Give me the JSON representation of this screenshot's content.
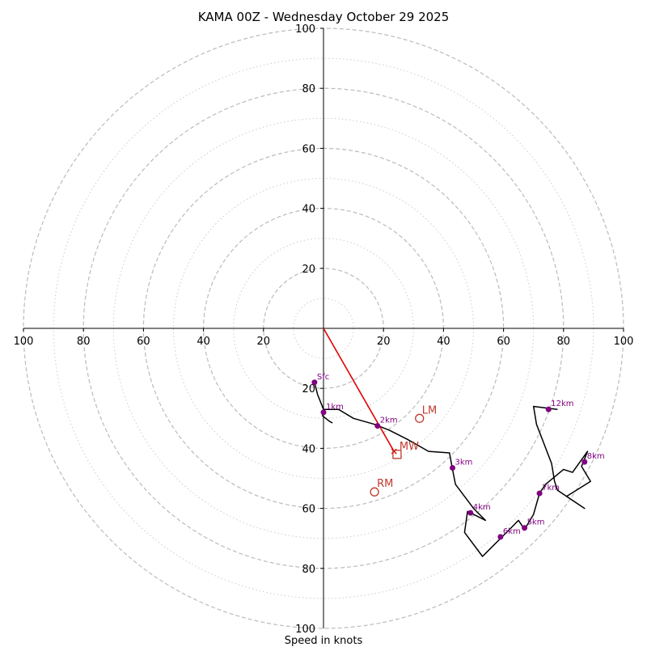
{
  "chart_data": {
    "type": "hodograph",
    "title": "KAMA 00Z - Wednesday October 29 2025",
    "xlabel": "Speed in knots",
    "range": [
      -100,
      100
    ],
    "ring_major": [
      20,
      40,
      60,
      80,
      100
    ],
    "ring_minor": [
      10,
      30,
      50,
      70,
      90
    ],
    "tick_labels": [
      "100",
      "80",
      "60",
      "40",
      "20",
      "20",
      "40",
      "60",
      "80",
      "100"
    ],
    "x_tick_values": [
      -100,
      -80,
      -60,
      -40,
      -20,
      20,
      40,
      60,
      80,
      100
    ],
    "y_tick_labels": [
      "100",
      "80",
      "60",
      "40",
      "20",
      "20",
      "40",
      "60",
      "80"
    ],
    "y_tick_values": [
      100,
      80,
      60,
      40,
      20,
      -20,
      -40,
      -60,
      -80
    ],
    "y_bottom_label": "100",
    "profile": [
      [
        -3,
        -18
      ],
      [
        -2,
        -22
      ],
      [
        0,
        -27
      ],
      [
        5,
        -27
      ],
      [
        10,
        -30
      ],
      [
        17,
        -32
      ],
      [
        22,
        -34
      ],
      [
        28,
        -37
      ],
      [
        35,
        -41
      ],
      [
        42,
        -41.5
      ],
      [
        43,
        -47
      ],
      [
        44,
        -52
      ],
      [
        47,
        -56
      ],
      [
        50,
        -60
      ],
      [
        54,
        -64
      ],
      [
        48,
        -61
      ],
      [
        47,
        -68
      ],
      [
        53,
        -76
      ],
      [
        54,
        -75
      ],
      [
        60,
        -69
      ],
      [
        63,
        -66
      ],
      [
        65,
        -64
      ],
      [
        67,
        -67
      ],
      [
        70,
        -62
      ],
      [
        72,
        -55
      ],
      [
        74,
        -52
      ],
      [
        80,
        -47
      ],
      [
        83,
        -48
      ],
      [
        88,
        -41
      ],
      [
        86,
        -46
      ],
      [
        89,
        -51
      ],
      [
        81,
        -56
      ],
      [
        87,
        -60
      ],
      [
        78,
        -54
      ],
      [
        77,
        -51
      ],
      [
        76,
        -45
      ],
      [
        71,
        -32
      ],
      [
        70,
        -26
      ],
      [
        78,
        -27
      ]
    ],
    "extra_segment": [
      [
        -0.5,
        -29
      ],
      [
        2,
        -31
      ],
      [
        3,
        -31.5
      ]
    ],
    "height_markers": [
      {
        "label": "Sfc",
        "u": -3,
        "v": -18
      },
      {
        "label": "1km",
        "u": 0,
        "v": -28
      },
      {
        "label": "2km",
        "u": 18,
        "v": -32.5
      },
      {
        "label": "3km",
        "u": 43,
        "v": -46.5
      },
      {
        "label": "4km",
        "u": 49,
        "v": -61.5
      },
      {
        "label": "5km",
        "u": 67,
        "v": -66.5
      },
      {
        "label": "6km",
        "u": 59,
        "v": -69.5
      },
      {
        "label": "7km",
        "u": 72,
        "v": -55
      },
      {
        "label": "8km",
        "u": 87,
        "v": -44.5
      },
      {
        "label": "12km",
        "u": 75,
        "v": -27
      }
    ],
    "storm_motion": [
      {
        "label": "LM",
        "u": 32,
        "v": -30,
        "marker": "circle"
      },
      {
        "label": "MW",
        "u": 24.5,
        "v": -42,
        "marker": "square"
      },
      {
        "label": "RM",
        "u": 17,
        "v": -54.5,
        "marker": "circle"
      }
    ],
    "mean_wind_vector": {
      "from": [
        0,
        0
      ],
      "to": [
        23.5,
        -41
      ]
    },
    "colors": {
      "grid": "#bbbbbb",
      "profile": "#000000",
      "markers": "#800080",
      "storm": "#c0392b",
      "vector": "#e00000"
    }
  }
}
